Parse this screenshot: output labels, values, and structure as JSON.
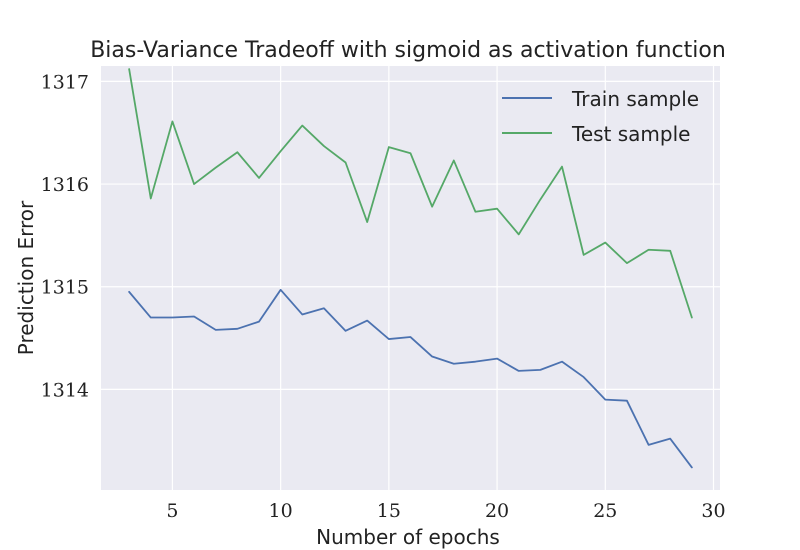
{
  "chart_data": {
    "type": "line",
    "title": "Bias-Variance Tradeoff with sigmoid as activation function",
    "xlabel": "Number of epochs",
    "ylabel": "Prediction Error",
    "xlim": [
      1.7,
      30.3
    ],
    "ylim": [
      1313.02,
      1317.15
    ],
    "xticks": [
      5,
      10,
      15,
      20,
      25,
      30
    ],
    "yticks": [
      1314,
      1315,
      1316,
      1317
    ],
    "grid": true,
    "legend_position": "top-right",
    "x": [
      3,
      4,
      5,
      6,
      7,
      8,
      9,
      10,
      11,
      12,
      13,
      14,
      15,
      16,
      17,
      18,
      19,
      20,
      21,
      22,
      23,
      24,
      25,
      26,
      27,
      28,
      29
    ],
    "series": [
      {
        "name": "Train sample",
        "color": "#4c72b0",
        "values": [
          1314.95,
          1314.7,
          1314.7,
          1314.71,
          1314.58,
          1314.59,
          1314.66,
          1314.97,
          1314.73,
          1314.79,
          1314.57,
          1314.67,
          1314.49,
          1314.51,
          1314.32,
          1314.25,
          1314.27,
          1314.3,
          1314.18,
          1314.19,
          1314.27,
          1314.12,
          1313.9,
          1313.89,
          1313.46,
          1313.52,
          1313.24
        ]
      },
      {
        "name": "Test sample",
        "color": "#55a868",
        "values": [
          1317.12,
          1315.86,
          1316.61,
          1316.0,
          1316.16,
          1316.31,
          1316.06,
          1316.32,
          1316.57,
          1316.37,
          1316.21,
          1315.63,
          1316.36,
          1316.3,
          1315.78,
          1316.23,
          1315.73,
          1315.76,
          1315.51,
          1315.85,
          1316.17,
          1315.31,
          1315.43,
          1315.23,
          1315.36,
          1315.35,
          1314.7
        ]
      }
    ]
  }
}
